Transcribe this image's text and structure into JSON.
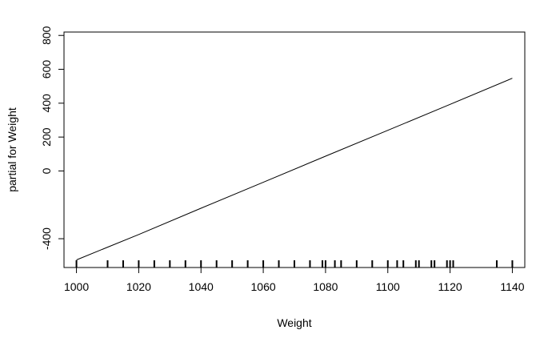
{
  "chart_data": {
    "type": "line",
    "title": "",
    "xlabel": "Weight",
    "ylabel": "partial for Weight",
    "xlim": [
      996,
      1144
    ],
    "ylim": [
      -570,
      820
    ],
    "x_ticks": [
      1000,
      1020,
      1040,
      1060,
      1080,
      1100,
      1120,
      1140
    ],
    "y_ticks": [
      -400,
      0,
      200,
      400,
      600,
      800
    ],
    "y_tick_labels": [
      "-400",
      "0",
      "200",
      "400",
      "600",
      "800"
    ],
    "grid": false,
    "series": [
      {
        "x": [
          1000,
          1010,
          1020,
          1040,
          1060,
          1080,
          1100,
          1120,
          1140
        ],
        "y": [
          -525,
          -450,
          -375,
          -220,
          -67,
          87,
          240,
          393,
          547
        ]
      }
    ],
    "rug": [
      1000,
      1010,
      1015,
      1020,
      1025,
      1030,
      1035,
      1040,
      1045,
      1050,
      1055,
      1060,
      1065,
      1070,
      1075,
      1079,
      1080,
      1083,
      1085,
      1090,
      1095,
      1100,
      1103,
      1105,
      1109,
      1110,
      1114,
      1115,
      1119,
      1120,
      1121,
      1135,
      1140
    ]
  }
}
